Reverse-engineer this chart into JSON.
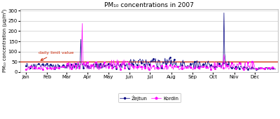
{
  "title": "PM₁₀ concentrations in 2007",
  "ylabel": "PM₁₀ concentration (μg/m³)",
  "ylim": [
    0,
    310
  ],
  "yticks": [
    0,
    50,
    100,
    150,
    200,
    250,
    300
  ],
  "daily_limit": 50,
  "daily_limit_label": "daily limit value",
  "daily_limit_color": "#cc2200",
  "zejtun_color": "#000080",
  "kordin_color": "#FF00FF",
  "background_color": "#ffffff",
  "plot_bg_color": "#ffffff",
  "legend_zejtun": "Żejtun",
  "legend_kordin": "Kordin",
  "month_starts": [
    0,
    31,
    59,
    90,
    120,
    151,
    181,
    212,
    243,
    273,
    304,
    334
  ],
  "month_labels": [
    "Jan",
    "Feb",
    "Mar",
    "Apr",
    "May",
    "Jun",
    "Jul",
    "Aug",
    "Sep",
    "Oct",
    "Nov",
    "Dec"
  ]
}
